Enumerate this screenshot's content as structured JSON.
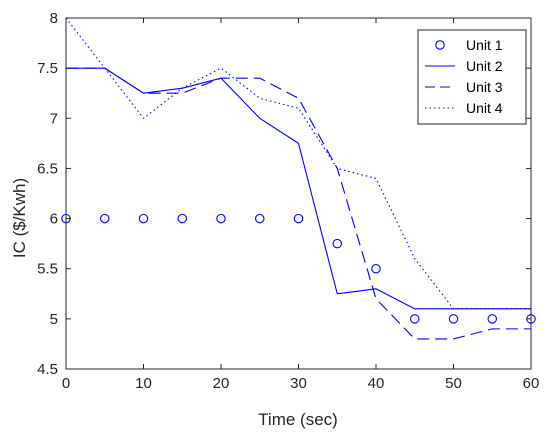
{
  "chart_data": {
    "type": "line",
    "xlabel": "Time (sec)",
    "ylabel": "IC ($/Kwh)",
    "xlim": [
      0,
      60
    ],
    "ylim": [
      4.5,
      8
    ],
    "xticks": [
      0,
      10,
      20,
      30,
      40,
      50,
      60
    ],
    "yticks": [
      4.5,
      5,
      5.5,
      6,
      6.5,
      7,
      7.5,
      8
    ],
    "xtick_labels": [
      "0",
      "10",
      "20",
      "30",
      "40",
      "50",
      "60"
    ],
    "ytick_labels": [
      "4.5",
      "5",
      "5.5",
      "6",
      "6.5",
      "7",
      "7.5",
      "8"
    ],
    "grid": false,
    "legend_position": "top-right",
    "color": "#0000ff",
    "series": [
      {
        "name": "Unit 1",
        "style": "circle-markers",
        "x": [
          0,
          5,
          10,
          15,
          20,
          25,
          30,
          35,
          40,
          45,
          50,
          55,
          60
        ],
        "y": [
          6,
          6,
          6,
          6,
          6,
          6,
          6,
          5.75,
          5.5,
          5,
          5,
          5,
          5
        ]
      },
      {
        "name": "Unit 2",
        "style": "solid",
        "x": [
          0,
          5,
          10,
          15,
          20,
          25,
          30,
          35,
          40,
          45,
          50,
          55,
          60
        ],
        "y": [
          7.5,
          7.5,
          7.25,
          7.3,
          7.4,
          7.0,
          6.75,
          5.25,
          5.3,
          5.1,
          5.1,
          5.1,
          5.1
        ]
      },
      {
        "name": "Unit 3",
        "style": "dashed",
        "x": [
          0,
          5,
          10,
          15,
          20,
          25,
          30,
          35,
          40,
          45,
          50,
          55,
          60
        ],
        "y": [
          7.5,
          7.5,
          7.25,
          7.25,
          7.4,
          7.4,
          7.2,
          6.5,
          5.2,
          4.8,
          4.8,
          4.9,
          4.9
        ]
      },
      {
        "name": "Unit 4",
        "style": "dotted",
        "x": [
          0,
          5,
          10,
          15,
          20,
          25,
          30,
          35,
          40,
          45,
          50,
          55,
          60
        ],
        "y": [
          8.0,
          7.5,
          7.0,
          7.3,
          7.5,
          7.2,
          7.1,
          6.5,
          6.4,
          5.6,
          5.1,
          5.1,
          5.1
        ]
      }
    ]
  }
}
